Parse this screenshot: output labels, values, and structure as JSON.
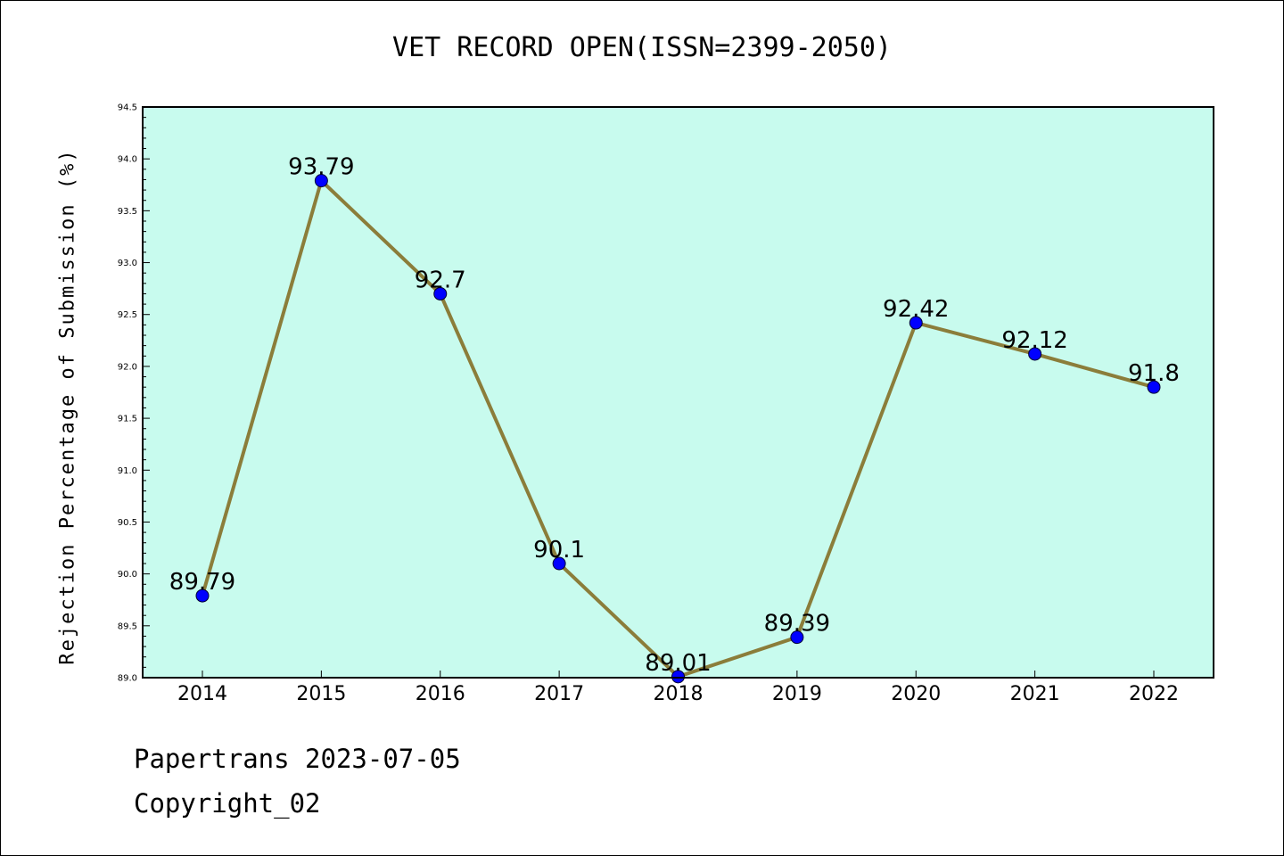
{
  "chart_data": {
    "type": "line",
    "title": "VET RECORD OPEN(ISSN=2399-2050)",
    "xlabel": "",
    "ylabel": "Rejection Percentage of Submission (%)",
    "categories": [
      "2014",
      "2015",
      "2016",
      "2017",
      "2018",
      "2019",
      "2020",
      "2021",
      "2022"
    ],
    "series": [
      {
        "values": [
          89.79,
          93.79,
          92.7,
          90.1,
          89.01,
          89.39,
          92.42,
          92.12,
          91.8
        ]
      }
    ],
    "data_labels": [
      "89.79",
      "93.79",
      "92.7",
      "90.1",
      "89.01",
      "89.39",
      "92.42",
      "92.12",
      "91.8"
    ],
    "ylim": [
      89.0,
      94.5
    ],
    "y_ticks": [
      "89.0",
      "89.5",
      "90.0",
      "90.5",
      "91.0",
      "91.5",
      "92.0",
      "92.5",
      "93.0",
      "93.5",
      "94.0",
      "94.5"
    ],
    "grid": false,
    "legend": "none",
    "colors": {
      "plot_background": "#c8fbee",
      "line": "#8b7d3a",
      "marker": "#0000ff"
    }
  },
  "footer": {
    "line1": "Papertrans 2023-07-05",
    "line2": "Copyright_02"
  }
}
